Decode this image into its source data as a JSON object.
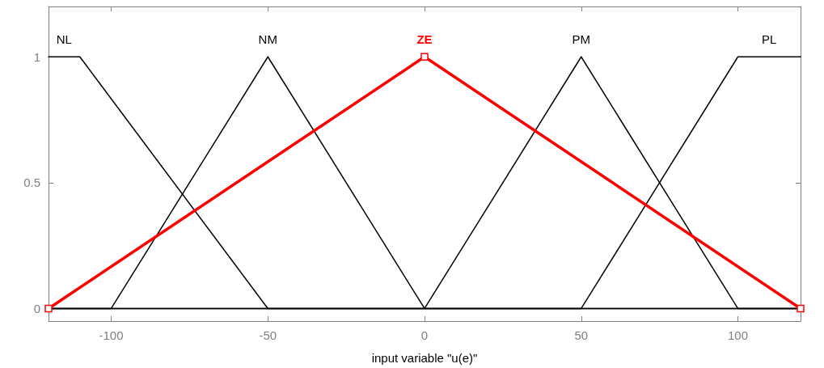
{
  "chart_data": {
    "type": "line",
    "xlabel": "input variable \"u(e)\"",
    "xlim": [
      -120,
      120
    ],
    "xticks": [
      -100,
      -50,
      0,
      50,
      100
    ],
    "ylim": [
      -0.05,
      1.2
    ],
    "yticks": [
      0,
      0.5,
      1
    ],
    "grid": false,
    "legend": false,
    "line_style": "solid",
    "series": [
      {
        "name": "NL",
        "color": "#000000",
        "marker": "none",
        "x": [
          -120,
          -110,
          -50,
          120
        ],
        "values": [
          1,
          1,
          0,
          0
        ]
      },
      {
        "name": "NM",
        "color": "#000000",
        "marker": "none",
        "x": [
          -120,
          -100,
          -50,
          0,
          120
        ],
        "values": [
          0,
          0,
          1,
          0,
          0
        ]
      },
      {
        "name": "ZE",
        "color": "#ff0000",
        "marker": "square",
        "x": [
          -120,
          0,
          120
        ],
        "values": [
          0,
          1,
          0
        ]
      },
      {
        "name": "PM",
        "color": "#000000",
        "marker": "none",
        "x": [
          -120,
          0,
          50,
          100,
          120
        ],
        "values": [
          0,
          0,
          1,
          0,
          0
        ]
      },
      {
        "name": "PL",
        "color": "#000000",
        "marker": "none",
        "x": [
          -120,
          50,
          100,
          120
        ],
        "values": [
          0,
          0,
          1,
          1
        ]
      }
    ]
  }
}
